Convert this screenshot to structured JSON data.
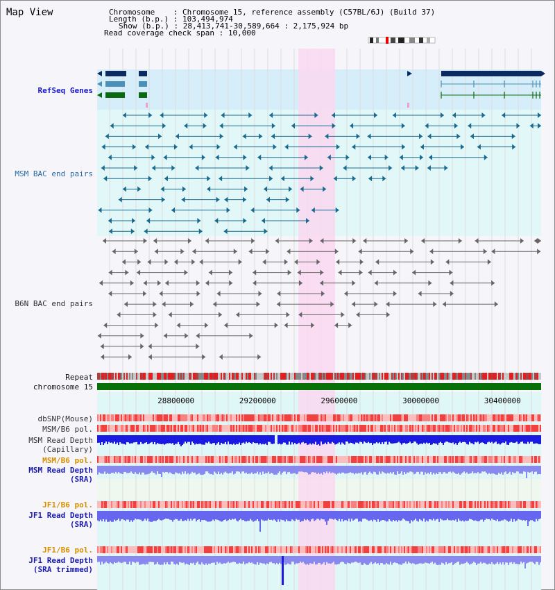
{
  "title": "Map View",
  "info": {
    "chromosome_label": "Chromosome",
    "chromosome_value": "Chromosome 15, reference assembly (C57BL/6J) (Build 37)",
    "length_label": "Length (b.p.)",
    "length_value": "103,494,974",
    "show_label": "Show (b.p.)",
    "show_value": "28,413,741-30,589,664 : 2,175,924 bp",
    "span_label": "Read coverage check span",
    "span_value": "10,000"
  },
  "tracks": {
    "refseq": "RefSeq Genes",
    "msm_bac": "MSM BAC end pairs",
    "b6n_bac": "B6N BAC end pairs",
    "repeat": "Repeat",
    "chrom": "chromosome 15",
    "dbsnp": "dbSNP(Mouse)",
    "msm_pol": "MSM/B6 pol.",
    "msm_depth_cap_1": "MSM Read Depth",
    "msm_depth_cap_2": "(Capillary)",
    "msm_pol_sra": "MSM/B6 pol.",
    "msm_depth_sra_1": "MSM Read Depth",
    "msm_depth_sra_2": "(SRA)",
    "jf1_pol": "JF1/B6 pol.",
    "jf1_depth_1": "JF1 Read Depth",
    "jf1_depth_2": "(SRA)",
    "jf1_pol_trim": "JF1/B6 pol.",
    "jf1_trim_1": "JF1 Read Depth",
    "jf1_trim_2": "(SRA trimmed)"
  },
  "ruler": {
    "ticks": [
      "28800000",
      "29200000",
      "29600000",
      "30000000",
      "30400000"
    ],
    "tick_positions_bp": [
      28800000,
      29200000,
      29600000,
      30000000,
      30400000
    ],
    "range_bp": [
      28413741,
      30589664
    ]
  },
  "highlight_range_bp": [
    29400000,
    29580000
  ],
  "colors": {
    "refseq_bg": "#d6eefa",
    "msm_bg": "#e2f8f8",
    "highlight": "#fad8f0",
    "gene_dark": "#0a2a60",
    "gene_mid": "#4a90b8",
    "gene_green": "#0a6a10",
    "msm_line": "#1a6a90",
    "b6n_line": "#666666",
    "chrom": "#087008",
    "depth_blue": "#1a1ae0",
    "depth_light": "#8888ee",
    "pol_red": "#f04040"
  }
}
